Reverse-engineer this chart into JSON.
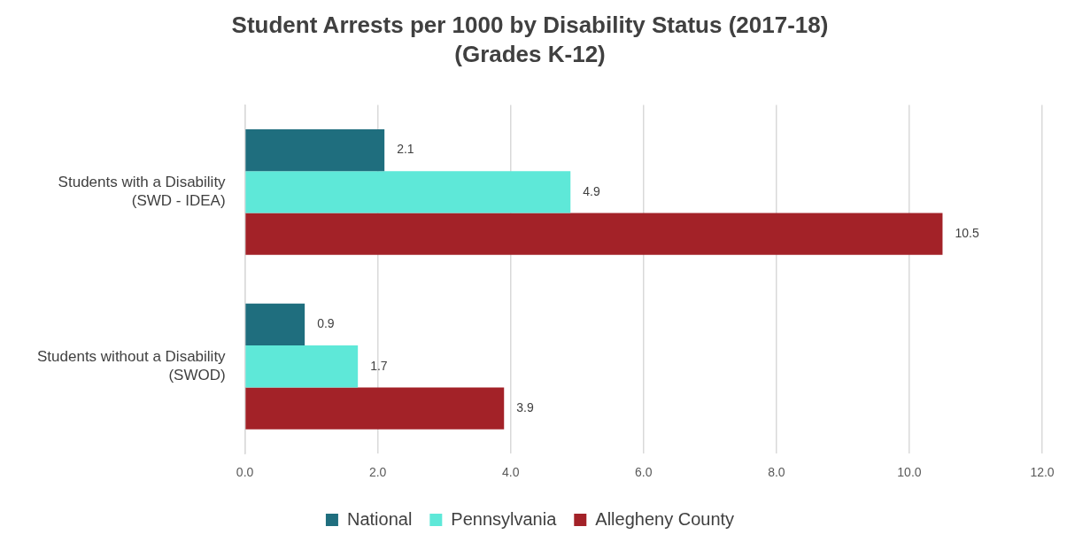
{
  "chart_data": {
    "type": "bar",
    "orientation": "horizontal",
    "title": "Student Arrests per 1000 by Disability Status (2017-18)",
    "subtitle": "(Grades K-12)",
    "categories": [
      "Students with a Disability\n(SWD - IDEA)",
      "Students without a Disability\n(SWOD)"
    ],
    "series": [
      {
        "name": "National",
        "color": "#1f6e7e",
        "values": [
          2.1,
          0.9
        ]
      },
      {
        "name": "Pennsylvania",
        "color": "#5ee8d8",
        "values": [
          4.9,
          1.7
        ]
      },
      {
        "name": "Allegheny County",
        "color": "#a32228",
        "values": [
          10.5,
          3.9
        ]
      }
    ],
    "xlim": [
      0,
      12
    ],
    "xticks": [
      {
        "value": 0,
        "label": "0.0"
      },
      {
        "value": 2,
        "label": "2.0"
      },
      {
        "value": 4,
        "label": "4.0"
      },
      {
        "value": 6,
        "label": "6.0"
      },
      {
        "value": 8,
        "label": "8.0"
      },
      {
        "value": 10,
        "label": "10.0"
      },
      {
        "value": 12,
        "label": "12.0"
      }
    ],
    "grid": "x",
    "legend": "bottom",
    "data_labels": true
  }
}
